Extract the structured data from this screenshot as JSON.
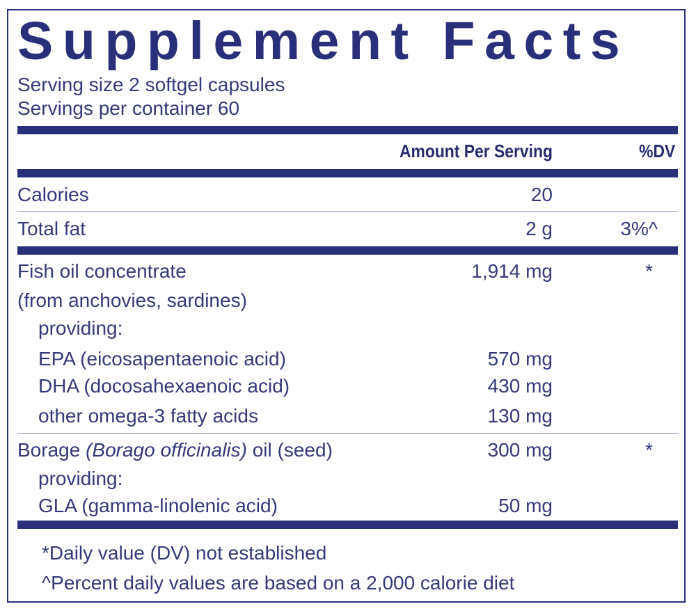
{
  "title": "Supplement Facts",
  "serving_size": "Serving size  2 softgel capsules",
  "servings_per_container": "Servings per container  60",
  "header": {
    "amount": "Amount Per Serving",
    "dv": "%DV"
  },
  "rows": [
    {
      "name": "Calories",
      "amount": "20",
      "dv": ""
    },
    {
      "name": "Total fat",
      "amount": "2 g",
      "dv": "3%^"
    },
    {
      "name": "Fish oil concentrate",
      "amount": "1,914 mg",
      "dv": "*"
    },
    {
      "name": "(from anchovies, sardines)"
    },
    {
      "name": "providing:"
    },
    {
      "name": "EPA (eicosapentaenoic acid)",
      "amount": "570 mg"
    },
    {
      "name": "DHA (docosahexaenoic acid)",
      "amount": "430 mg"
    },
    {
      "name": "other omega-3 fatty acids",
      "amount": "130 mg"
    },
    {
      "name_pre": "Borage ",
      "name_italic": "(Borago officinalis)",
      "name_post": " oil (seed)",
      "amount": "300 mg",
      "dv": "*"
    },
    {
      "name": "providing:"
    },
    {
      "name": "GLA (gamma-linolenic acid)",
      "amount": "50 mg"
    }
  ],
  "footnotes": [
    "*Daily value (DV) not established",
    "^Percent daily values are based on a 2,000 calorie diet"
  ],
  "colors": {
    "navy": "#2a2f7a",
    "text": "#34397a"
  }
}
